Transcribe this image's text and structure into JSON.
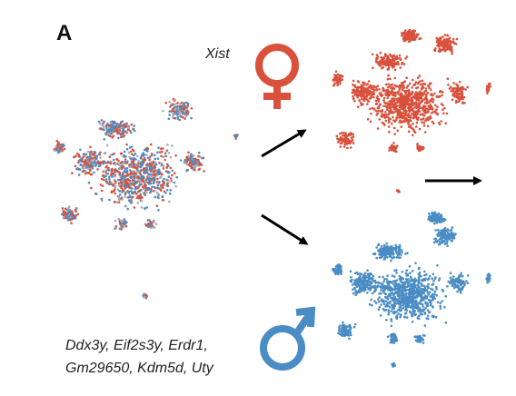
{
  "panel_label": "A",
  "female": {
    "marker": "Xist"
  },
  "male": {
    "markers": [
      "Ddx3y, Eif2s3y, Erdr1,",
      "Gm29650, Kdm5d, Uty"
    ]
  }
}
